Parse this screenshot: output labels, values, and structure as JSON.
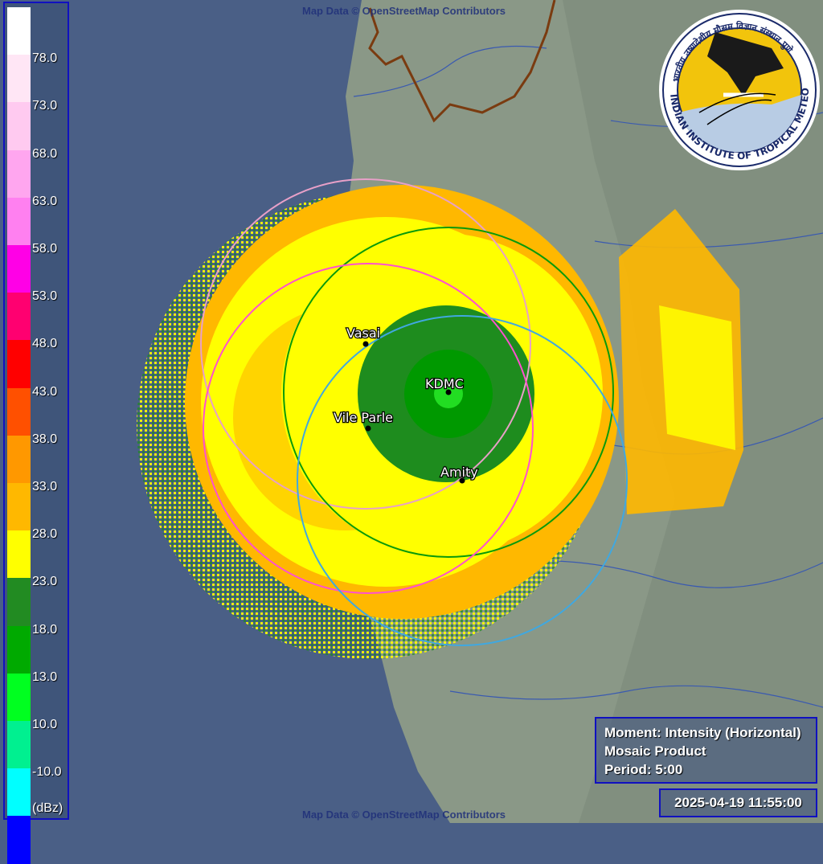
{
  "attribution": "Map Data © OpenStreetMap Contributors",
  "legend": {
    "unit": "(dBz)",
    "ticks": [
      "78.0",
      "73.0",
      "68.0",
      "63.0",
      "58.0",
      "53.0",
      "48.0",
      "43.0",
      "38.0",
      "33.0",
      "28.0",
      "23.0",
      "18.0",
      "13.0",
      "10.0",
      "-10.0"
    ],
    "colors": [
      "#ffffff",
      "#ffe6f5",
      "#ffcaf0",
      "#ffa6ef",
      "#ff80f0",
      "#ff00e6",
      "#ff0070",
      "#ff0000",
      "#ff5000",
      "#ff9800",
      "#ffb800",
      "#ffff00",
      "#228b22",
      "#00aa00",
      "#00ff20",
      "#00f090",
      "#00ffff",
      "#0000ff"
    ]
  },
  "radar_sites": [
    {
      "name": "Vasai"
    },
    {
      "name": "KDMC"
    },
    {
      "name": "Vile Parle"
    },
    {
      "name": "Amity"
    }
  ],
  "logo": {
    "text": "INDIAN INSTITUTE OF TROPICAL METEOROLOGY PUNE",
    "hindi_text": "भारतीय उष्णदेशीय मौसम विज्ञान संस्थान पुणे"
  },
  "info": {
    "moment": "Moment: Intensity (Horizontal)",
    "product": "Mosaic Product",
    "period": "Period: 5:00"
  },
  "timestamp": "2025-04-19 11:55:00",
  "colors": {
    "sea": "#4a5f86",
    "land": "#8c9a8a",
    "echo_strong": "#ffb800",
    "echo_mid": "#ffff00",
    "echo_weak": "#228b22",
    "frame": "#1010c0"
  }
}
